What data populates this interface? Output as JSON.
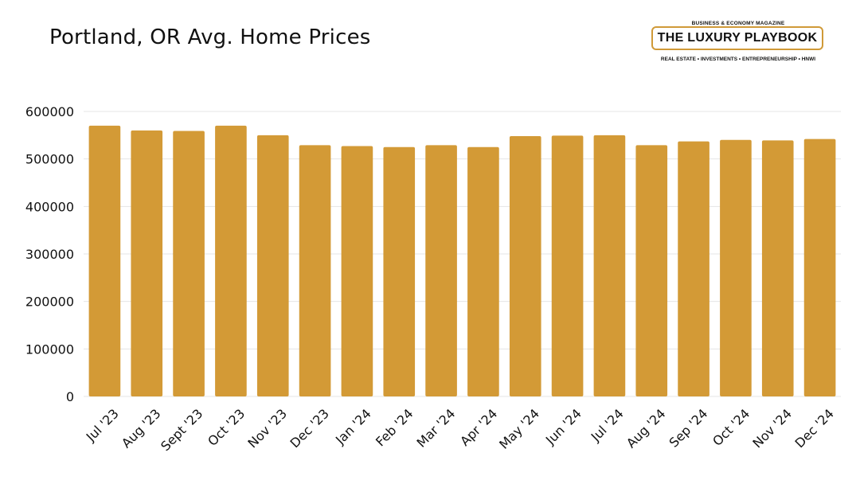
{
  "header": {
    "title": "Portland, OR Avg. Home Prices"
  },
  "logo": {
    "top_text": "BUSINESS & ECONOMY MAGAZINE",
    "main_text": "THE LUXURY PLAYBOOK",
    "sub_text": "REAL ESTATE • INVESTMENTS • ENTREPRENEURSHIP • HNWI"
  },
  "colors": {
    "bar": "#D39A36",
    "grid": "#E4E4E4",
    "text": "#111111",
    "logo_border": "#D09A38"
  },
  "chart_data": {
    "type": "bar",
    "title": "Portland, OR Avg. Home Prices",
    "xlabel": "",
    "ylabel": "",
    "ylim": [
      0,
      600000
    ],
    "yticks": [
      0,
      100000,
      200000,
      300000,
      400000,
      500000,
      600000
    ],
    "ytick_labels": [
      "0",
      "100000",
      "200000",
      "300000",
      "400000",
      "500000",
      "600000"
    ],
    "grid": true,
    "legend": "none",
    "categories": [
      "Jul '23",
      "Aug '23",
      "Sept '23",
      "Oct '23",
      "Nov '23",
      "Dec '23",
      "Jan '24",
      "Feb '24",
      "Mar '24",
      "Apr '24",
      "May '24",
      "Jun '24",
      "Jul '24",
      "Aug '24",
      "Sep '24",
      "Oct '24",
      "Nov '24",
      "Dec '24"
    ],
    "values": [
      570000,
      560000,
      559000,
      570000,
      550000,
      529000,
      527000,
      525000,
      529000,
      525000,
      548000,
      549000,
      550000,
      529000,
      537000,
      540000,
      539000,
      542000
    ]
  }
}
